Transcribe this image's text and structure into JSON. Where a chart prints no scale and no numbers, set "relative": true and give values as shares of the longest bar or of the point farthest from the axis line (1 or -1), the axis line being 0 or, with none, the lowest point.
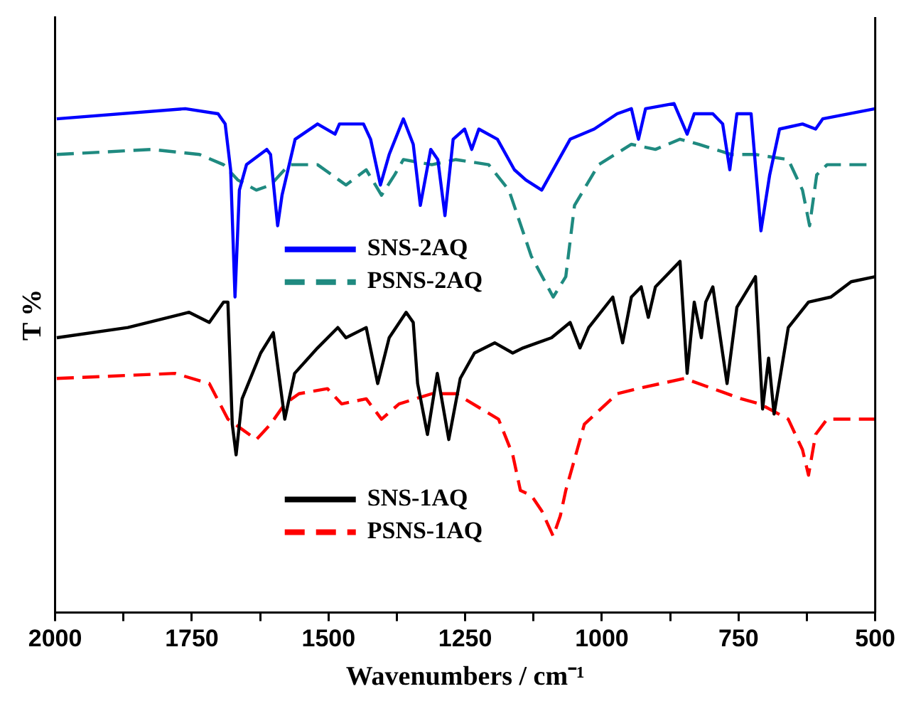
{
  "chart_data": {
    "type": "line",
    "xlabel": "Wavenumbers / cm⁻¹",
    "ylabel": "T %",
    "relative": true,
    "xlim": [
      2000,
      500
    ],
    "xticks": [
      2000,
      {
        "value": 1875,
        "label": null
      },
      1750,
      {
        "value": 1625,
        "label": null
      },
      1500,
      {
        "value": 1375,
        "label": null
      },
      1250,
      {
        "value": 1125,
        "label": null
      },
      1000,
      {
        "value": 875,
        "label": null
      },
      750,
      {
        "value": 625,
        "label": null
      },
      500
    ],
    "grid": false,
    "legend": "left",
    "marker": "none",
    "series": [
      {
        "name": "SNS-2AQ",
        "color": "#0000ff",
        "line_style": "solid",
        "x": [
          1997,
          1762,
          1702,
          1689,
          1679,
          1671,
          1663,
          1650,
          1613,
          1606,
          1593,
          1585,
          1561,
          1520,
          1488,
          1480,
          1436,
          1423,
          1405,
          1389,
          1363,
          1345,
          1332,
          1313,
          1300,
          1287,
          1272,
          1251,
          1238,
          1225,
          1191,
          1160,
          1139,
          1110,
          1058,
          1014,
          972,
          946,
          933,
          920,
          868,
          844,
          831,
          797,
          779,
          766,
          753,
          727,
          709,
          693,
          675,
          633,
          609,
          596,
          500
        ],
        "values": [
          0.97,
          0.99,
          0.98,
          0.96,
          0.87,
          0.62,
          0.83,
          0.88,
          0.91,
          0.9,
          0.76,
          0.82,
          0.93,
          0.96,
          0.94,
          0.96,
          0.96,
          0.93,
          0.84,
          0.9,
          0.97,
          0.92,
          0.8,
          0.91,
          0.89,
          0.78,
          0.93,
          0.95,
          0.91,
          0.95,
          0.93,
          0.87,
          0.85,
          0.83,
          0.93,
          0.95,
          0.98,
          0.99,
          0.93,
          0.99,
          1,
          0.94,
          0.98,
          0.98,
          0.96,
          0.87,
          0.98,
          0.98,
          0.75,
          0.86,
          0.95,
          0.96,
          0.95,
          0.97,
          0.99
        ]
      },
      {
        "name": "PSNS-2AQ",
        "color": "#1f8a80",
        "line_style": "dashed",
        "x": [
          1997,
          1823,
          1736,
          1692,
          1666,
          1632,
          1606,
          1572,
          1520,
          1481,
          1468,
          1431,
          1403,
          1379,
          1363,
          1311,
          1267,
          1207,
          1170,
          1129,
          1089,
          1066,
          1050,
          1006,
          946,
          902,
          857,
          823,
          763,
          719,
          659,
          633,
          620,
          607,
          588,
          500
        ],
        "values": [
          0.9,
          0.91,
          0.9,
          0.88,
          0.85,
          0.83,
          0.84,
          0.88,
          0.88,
          0.85,
          0.84,
          0.87,
          0.82,
          0.86,
          0.89,
          0.88,
          0.89,
          0.88,
          0.83,
          0.7,
          0.62,
          0.66,
          0.8,
          0.88,
          0.92,
          0.91,
          0.93,
          0.92,
          0.9,
          0.9,
          0.89,
          0.83,
          0.76,
          0.86,
          0.88,
          0.88
        ]
      },
      {
        "name": "SNS-1AQ",
        "color": "#000000",
        "line_style": "solid",
        "x": [
          1997,
          1867,
          1755,
          1718,
          1692,
          1684,
          1676,
          1669,
          1658,
          1624,
          1601,
          1580,
          1562,
          1520,
          1483,
          1468,
          1431,
          1410,
          1389,
          1358,
          1345,
          1337,
          1319,
          1301,
          1280,
          1259,
          1233,
          1196,
          1163,
          1144,
          1092,
          1058,
          1040,
          1024,
          980,
          962,
          946,
          928,
          915,
          902,
          857,
          844,
          831,
          818,
          810,
          797,
          771,
          753,
          719,
          706,
          695,
          685,
          659,
          622,
          581,
          544,
          500
        ],
        "values": [
          0.54,
          0.56,
          0.59,
          0.57,
          0.61,
          0.61,
          0.37,
          0.31,
          0.42,
          0.51,
          0.55,
          0.38,
          0.47,
          0.52,
          0.56,
          0.54,
          0.56,
          0.45,
          0.54,
          0.59,
          0.57,
          0.45,
          0.35,
          0.47,
          0.34,
          0.46,
          0.51,
          0.53,
          0.51,
          0.52,
          0.54,
          0.57,
          0.52,
          0.56,
          0.62,
          0.53,
          0.62,
          0.64,
          0.58,
          0.64,
          0.69,
          0.47,
          0.61,
          0.54,
          0.61,
          0.64,
          0.45,
          0.6,
          0.66,
          0.4,
          0.5,
          0.39,
          0.56,
          0.61,
          0.62,
          0.65,
          0.66
        ]
      },
      {
        "name": "PSNS-1AQ",
        "color": "#ff0000",
        "line_style": "dashed",
        "x": [
          1997,
          1781,
          1718,
          1684,
          1658,
          1632,
          1606,
          1580,
          1554,
          1502,
          1476,
          1431,
          1403,
          1371,
          1311,
          1267,
          1189,
          1163,
          1149,
          1129,
          1110,
          1089,
          1076,
          1066,
          1032,
          972,
          935,
          849,
          797,
          745,
          711,
          659,
          633,
          622,
          609,
          588,
          500
        ],
        "values": [
          0.46,
          0.47,
          0.45,
          0.38,
          0.36,
          0.34,
          0.37,
          0.41,
          0.43,
          0.44,
          0.41,
          0.42,
          0.38,
          0.41,
          0.43,
          0.43,
          0.38,
          0.31,
          0.24,
          0.23,
          0.2,
          0.15,
          0.19,
          0.24,
          0.37,
          0.43,
          0.44,
          0.46,
          0.44,
          0.42,
          0.41,
          0.38,
          0.32,
          0.27,
          0.35,
          0.38,
          0.38
        ]
      }
    ]
  }
}
